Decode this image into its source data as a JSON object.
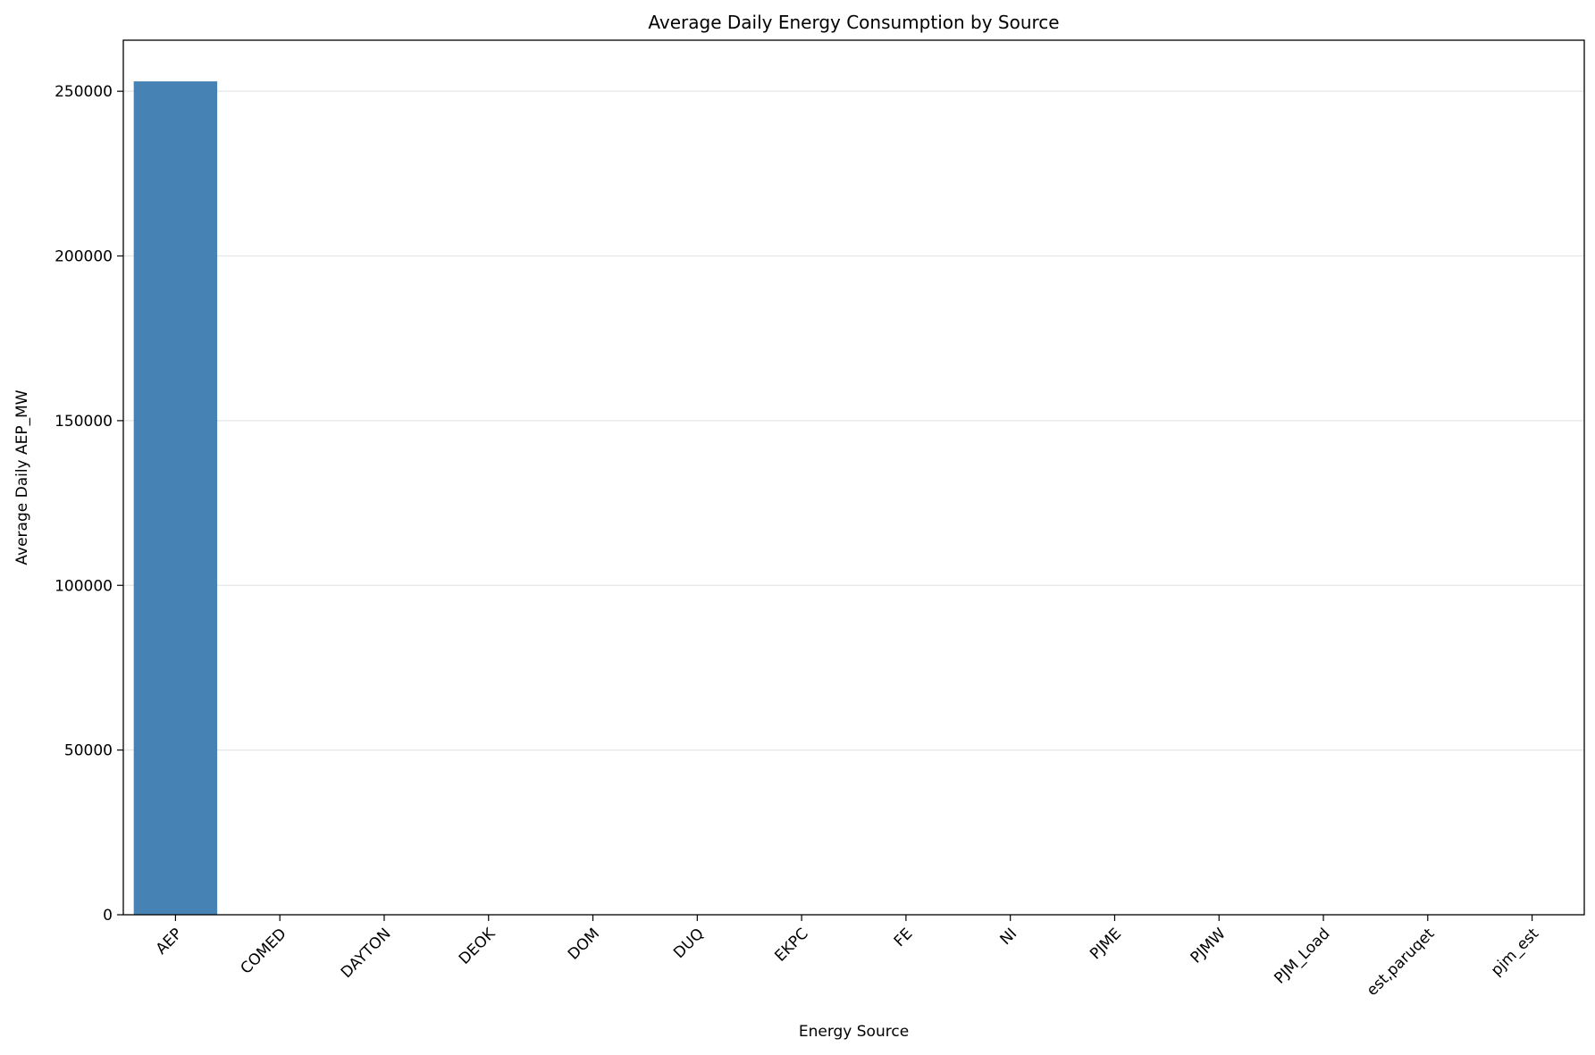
{
  "chart_data": {
    "type": "bar",
    "title": "Average Daily Energy Consumption by Source",
    "xlabel": "Energy Source",
    "ylabel": "Average Daily AEP_MW",
    "categories": [
      "AEP",
      "COMED",
      "DAYTON",
      "DEOK",
      "DOM",
      "DUQ",
      "EKPC",
      "FE",
      "NI",
      "PJME",
      "PJMW",
      "PJM_Load",
      "est,paruqet",
      "pjm_est"
    ],
    "values": [
      253000,
      0,
      0,
      0,
      0,
      0,
      0,
      0,
      0,
      0,
      0,
      0,
      0,
      0
    ],
    "yticks": [
      0,
      50000,
      100000,
      150000,
      200000,
      250000
    ],
    "ylim": [
      0,
      265500
    ],
    "grid": "y",
    "bar_color": "#4682b4",
    "grid_color": "#e6e6e6"
  }
}
